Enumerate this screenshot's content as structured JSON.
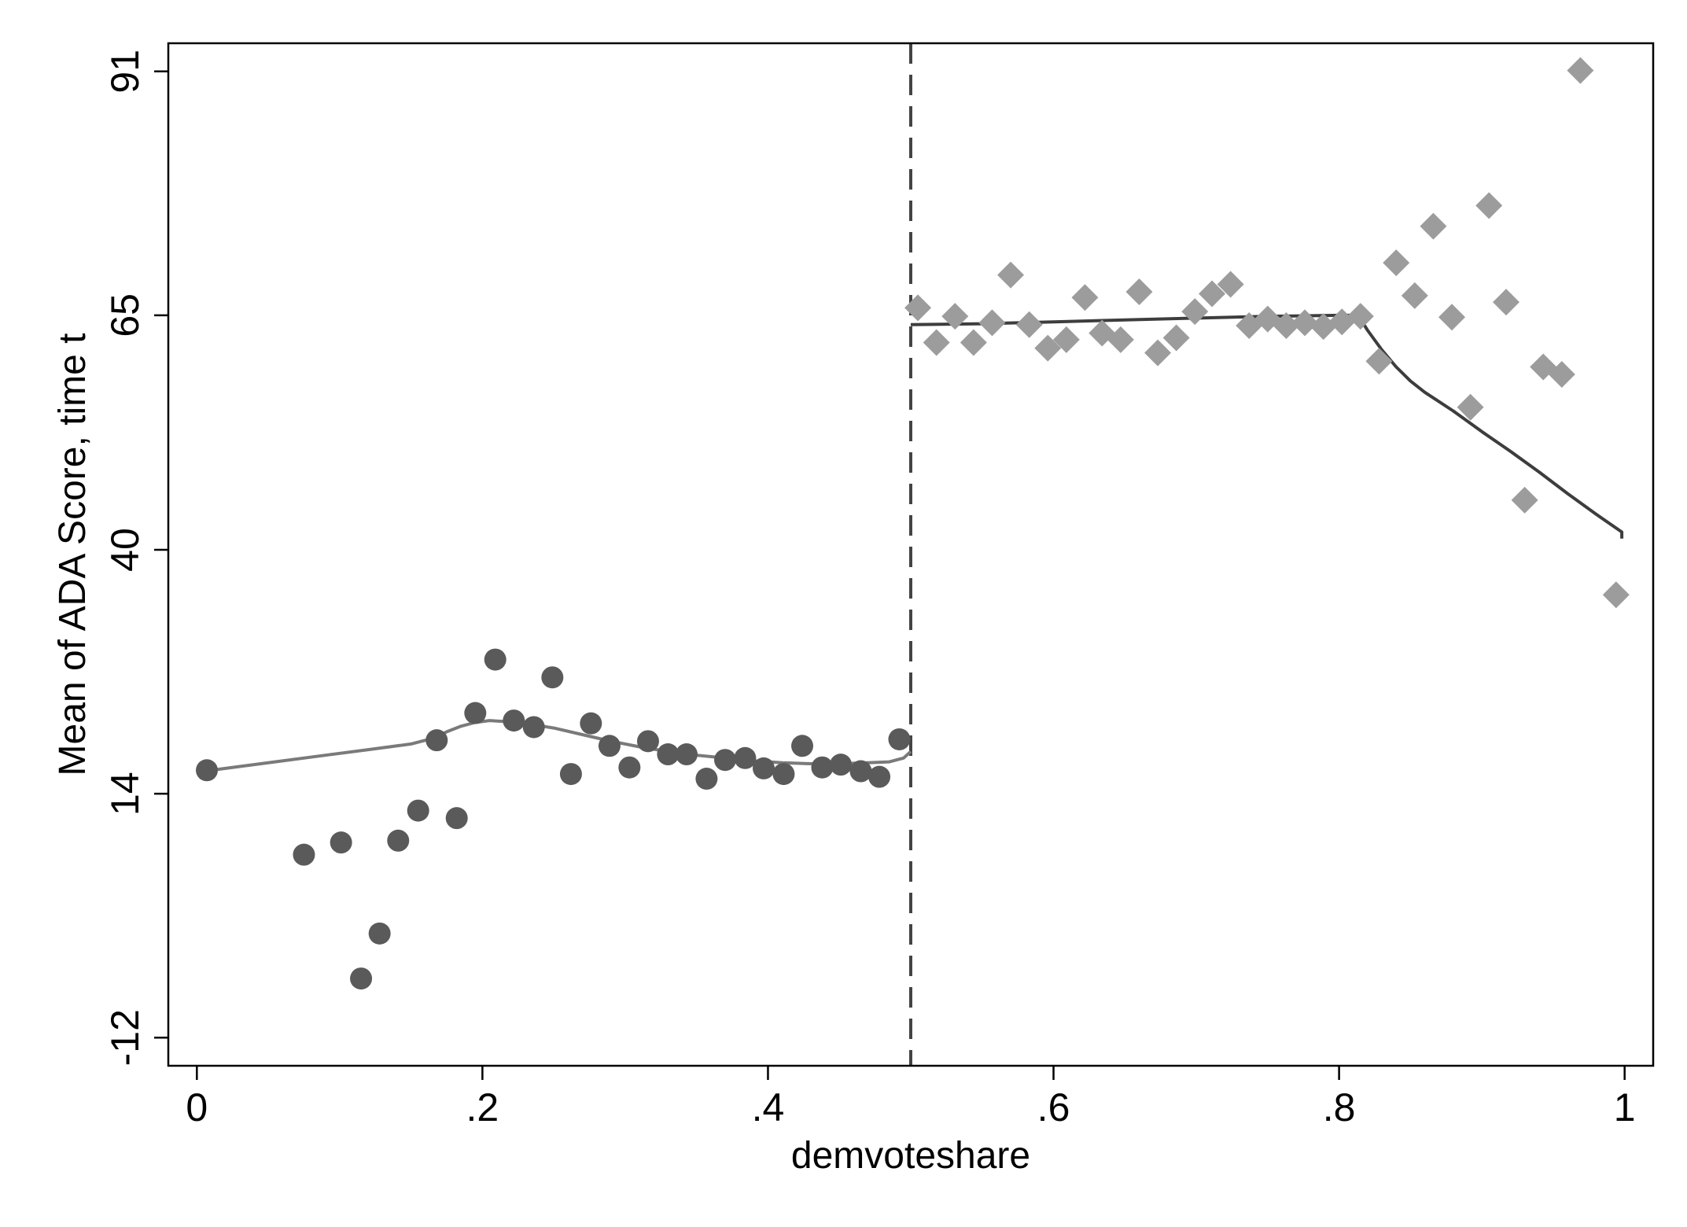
{
  "chart_data": {
    "type": "scatter",
    "xlabel": "demvoteshare",
    "ylabel": "Mean of ADA Score, time t",
    "xlim": [
      -0.02,
      1.02
    ],
    "ylim": [
      -15,
      94
    ],
    "xticks": [
      0,
      0.2,
      0.4,
      0.6,
      0.8,
      1
    ],
    "xtick_labels": [
      "0",
      ".2",
      ".4",
      ".6",
      ".8",
      "1"
    ],
    "yticks": [
      -12,
      14,
      40,
      65,
      91
    ],
    "ytick_labels": [
      "-12",
      "14",
      "40",
      "65",
      "91"
    ],
    "grid": false,
    "cutoff": 0.5,
    "colors": {
      "left_points": "#5a5a5a",
      "right_points": "#9c9c9c",
      "left_fit": "#7a7a7a",
      "right_fit": "#3d3d3d",
      "cutoff_line": "#444444"
    },
    "series": [
      {
        "marker": "circle",
        "x": [
          0.007,
          0.075,
          0.101,
          0.115,
          0.128,
          0.141,
          0.155,
          0.168,
          0.182,
          0.195,
          0.209,
          0.222,
          0.236,
          0.249,
          0.262,
          0.276,
          0.289,
          0.303,
          0.316,
          0.33,
          0.343,
          0.357,
          0.37,
          0.384,
          0.397,
          0.411,
          0.424,
          0.438,
          0.451,
          0.465,
          0.478,
          0.492
        ],
        "y": [
          16.5,
          7.5,
          8.8,
          -5.7,
          -0.9,
          9.0,
          12.2,
          19.7,
          11.4,
          22.6,
          28.3,
          21.8,
          21.1,
          26.4,
          16.1,
          21.5,
          19.1,
          16.8,
          19.6,
          18.2,
          18.2,
          15.6,
          17.6,
          17.8,
          16.7,
          16.1,
          19.1,
          16.8,
          17.1,
          16.4,
          15.8,
          19.8
        ]
      },
      {
        "marker": "diamond",
        "x": [
          0.505,
          0.518,
          0.531,
          0.544,
          0.557,
          0.57,
          0.583,
          0.596,
          0.609,
          0.622,
          0.634,
          0.647,
          0.66,
          0.673,
          0.686,
          0.699,
          0.711,
          0.724,
          0.737,
          0.75,
          0.763,
          0.776,
          0.789,
          0.802,
          0.815,
          0.828,
          0.84,
          0.853,
          0.866,
          0.879,
          0.892,
          0.905,
          0.917,
          0.93,
          0.943,
          0.956,
          0.969,
          0.994
        ],
        "y": [
          65.8,
          62.1,
          64.9,
          62.1,
          64.2,
          69.3,
          64.0,
          61.5,
          62.4,
          66.9,
          63.1,
          62.4,
          67.5,
          61.0,
          62.6,
          65.4,
          67.3,
          68.3,
          63.9,
          64.6,
          63.9,
          64.2,
          63.8,
          64.3,
          64.9,
          60.1,
          70.6,
          67.1,
          74.5,
          64.8,
          55.2,
          76.7,
          66.4,
          45.3,
          59.5,
          58.7,
          91.1,
          35.2
        ]
      },
      {
        "type": "line",
        "x": [
          0.005,
          0.03,
          0.06,
          0.09,
          0.12,
          0.15,
          0.165,
          0.175,
          0.185,
          0.195,
          0.205,
          0.215,
          0.23,
          0.25,
          0.27,
          0.29,
          0.31,
          0.33,
          0.35,
          0.37,
          0.39,
          0.41,
          0.43,
          0.45,
          0.47,
          0.485,
          0.495,
          0.5
        ],
        "y": [
          16.4,
          16.9,
          17.5,
          18.1,
          18.7,
          19.3,
          19.9,
          20.6,
          21.2,
          21.6,
          21.8,
          21.7,
          21.5,
          21.0,
          20.3,
          19.6,
          19.0,
          18.5,
          18.1,
          17.8,
          17.5,
          17.3,
          17.2,
          17.2,
          17.3,
          17.4,
          17.8,
          18.5
        ]
      },
      {
        "type": "line",
        "x": [
          0.5,
          0.55,
          0.6,
          0.65,
          0.7,
          0.75,
          0.8,
          0.81,
          0.815,
          0.82,
          0.83,
          0.84,
          0.85,
          0.86,
          0.88,
          0.9,
          0.92,
          0.94,
          0.96,
          0.98,
          0.998,
          0.998
        ],
        "y": [
          64.0,
          64.1,
          64.3,
          64.5,
          64.7,
          64.9,
          65.0,
          65.0,
          64.6,
          63.4,
          61.3,
          59.5,
          58.0,
          56.8,
          54.8,
          52.6,
          50.5,
          48.3,
          46.0,
          43.8,
          41.9,
          41.2
        ]
      }
    ]
  }
}
